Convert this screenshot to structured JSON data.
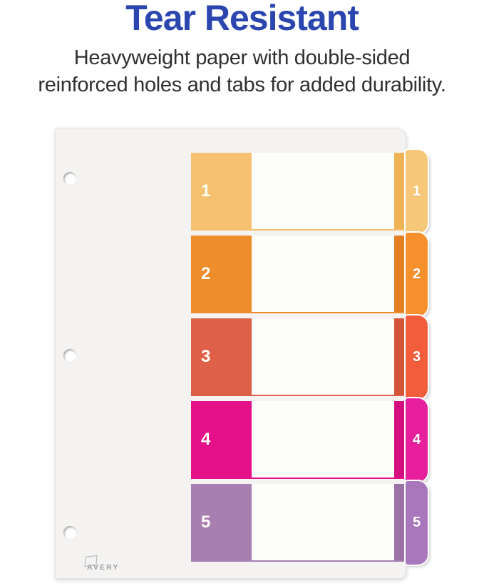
{
  "headline": "Tear Resistant",
  "subheadline_lines": [
    "Heavyweight paper with double-sided",
    "reinforced holes and tabs for added durability."
  ],
  "brand": {
    "logo_text": "AVERY"
  },
  "colors": {
    "headline": "#2B46AE",
    "body_text": "#2F2F2F",
    "sheet": "#F4F3F1"
  },
  "rows": [
    {
      "number": "1",
      "block_color": "#F5C170",
      "strip_color": "#EFB254",
      "tab_color": "#F8C87A"
    },
    {
      "number": "2",
      "block_color": "#EE8D2C",
      "strip_color": "#E37F21",
      "tab_color": "#F6902C"
    },
    {
      "number": "3",
      "block_color": "#DE6048",
      "strip_color": "#D55538",
      "tab_color": "#F25E3C"
    },
    {
      "number": "4",
      "block_color": "#E5118B",
      "strip_color": "#D40E7F",
      "tab_color": "#E71F9C"
    },
    {
      "number": "5",
      "block_color": "#A77FB0",
      "strip_color": "#9C72A6",
      "tab_color": "#A978BC"
    }
  ]
}
